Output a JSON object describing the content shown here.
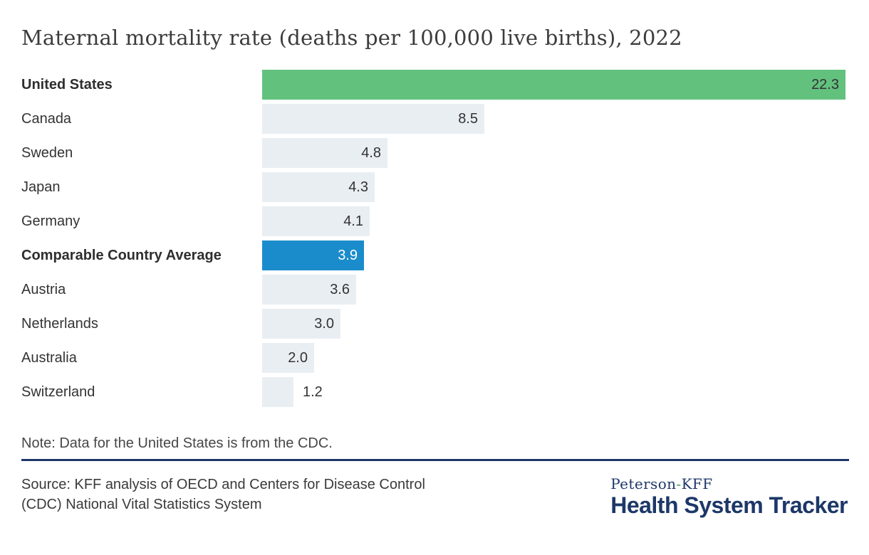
{
  "title": "Maternal mortality rate (deaths per 100,000 live births), 2022",
  "chart_data": {
    "type": "bar",
    "orientation": "horizontal",
    "title": "Maternal mortality rate (deaths per 100,000 live births), 2022",
    "xlabel": "",
    "ylabel": "",
    "xlim": [
      0,
      22.3
    ],
    "grid": false,
    "legend": false,
    "categories": [
      "United States",
      "Canada",
      "Sweden",
      "Japan",
      "Germany",
      "Comparable Country Average",
      "Austria",
      "Netherlands",
      "Australia",
      "Switzerland"
    ],
    "values": [
      22.3,
      8.5,
      4.8,
      4.3,
      4.1,
      3.9,
      3.6,
      3.0,
      2.0,
      1.2
    ],
    "bars": [
      {
        "label": "United States",
        "value": 22.3,
        "display": "22.3",
        "bold": true,
        "variant": "green",
        "value_inside": true
      },
      {
        "label": "Canada",
        "value": 8.5,
        "display": "8.5",
        "bold": false,
        "variant": "default",
        "value_inside": true
      },
      {
        "label": "Sweden",
        "value": 4.8,
        "display": "4.8",
        "bold": false,
        "variant": "default",
        "value_inside": true
      },
      {
        "label": "Japan",
        "value": 4.3,
        "display": "4.3",
        "bold": false,
        "variant": "default",
        "value_inside": true
      },
      {
        "label": "Germany",
        "value": 4.1,
        "display": "4.1",
        "bold": false,
        "variant": "default",
        "value_inside": true
      },
      {
        "label": "Comparable Country Average",
        "value": 3.9,
        "display": "3.9",
        "bold": true,
        "variant": "blue",
        "value_inside": true
      },
      {
        "label": "Austria",
        "value": 3.6,
        "display": "3.6",
        "bold": false,
        "variant": "default",
        "value_inside": true
      },
      {
        "label": "Netherlands",
        "value": 3.0,
        "display": "3.0",
        "bold": false,
        "variant": "default",
        "value_inside": true
      },
      {
        "label": "Australia",
        "value": 2.0,
        "display": "2.0",
        "bold": false,
        "variant": "default",
        "value_inside": true
      },
      {
        "label": "Switzerland",
        "value": 1.2,
        "display": "1.2",
        "bold": false,
        "variant": "default",
        "value_inside": false
      }
    ]
  },
  "note": "Note: Data for the United States is from the CDC.",
  "source": {
    "line1": "Source: KFF analysis of OECD and Centers for Disease Control",
    "line2": "(CDC) National Vital Statistics System"
  },
  "logo": {
    "peterson": "Peterson",
    "hyphen": "-",
    "kff": "KFF",
    "tracker": "Health System Tracker"
  },
  "colors": {
    "highlight_green": "#63c17e",
    "highlight_blue": "#1b8ccb",
    "bar_default": "#e9eef3",
    "navy": "#1d3768",
    "logo_hyphen_green": "#3d9e63"
  }
}
